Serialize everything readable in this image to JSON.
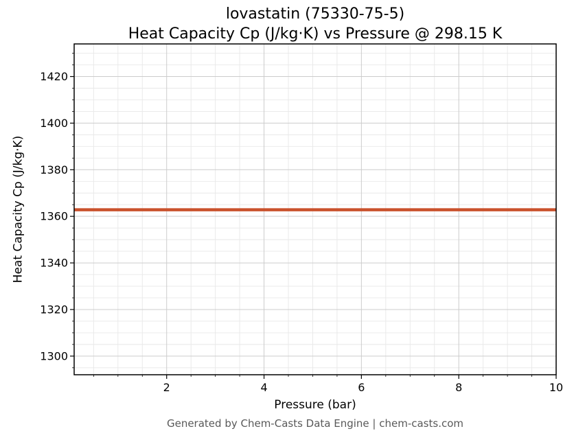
{
  "chart_data": {
    "type": "line",
    "title": "lovastatin (75330-75-5)",
    "subtitle": "Heat Capacity Cp (J/kg·K) vs Pressure @ 298.15 K",
    "xlabel": "Pressure (bar)",
    "ylabel": "Heat Capacity Cp (J/kg·K)",
    "xlim": [
      0.1,
      10
    ],
    "ylim": [
      1292,
      1434
    ],
    "x_ticks": [
      2,
      4,
      6,
      8,
      10
    ],
    "y_ticks": [
      1300,
      1320,
      1340,
      1360,
      1380,
      1400,
      1420
    ],
    "x_minor_step": 0.5,
    "y_minor_step": 5,
    "grid": "major+minor",
    "legend": "none",
    "series": [
      {
        "name": "Heat Capacity Cp",
        "color": "#c9512c",
        "x": [
          0.1,
          2,
          4,
          6,
          8,
          10
        ],
        "y": [
          1362.8,
          1362.8,
          1362.8,
          1362.8,
          1362.8,
          1362.8
        ]
      }
    ],
    "colors": {
      "line": "#c9512c",
      "grid_major": "#cccccc",
      "grid_minor": "#e8e8e8",
      "axes": "#000000",
      "footer": "#595959"
    },
    "footer": "Generated by Chem-Casts Data Engine | chem-casts.com"
  }
}
